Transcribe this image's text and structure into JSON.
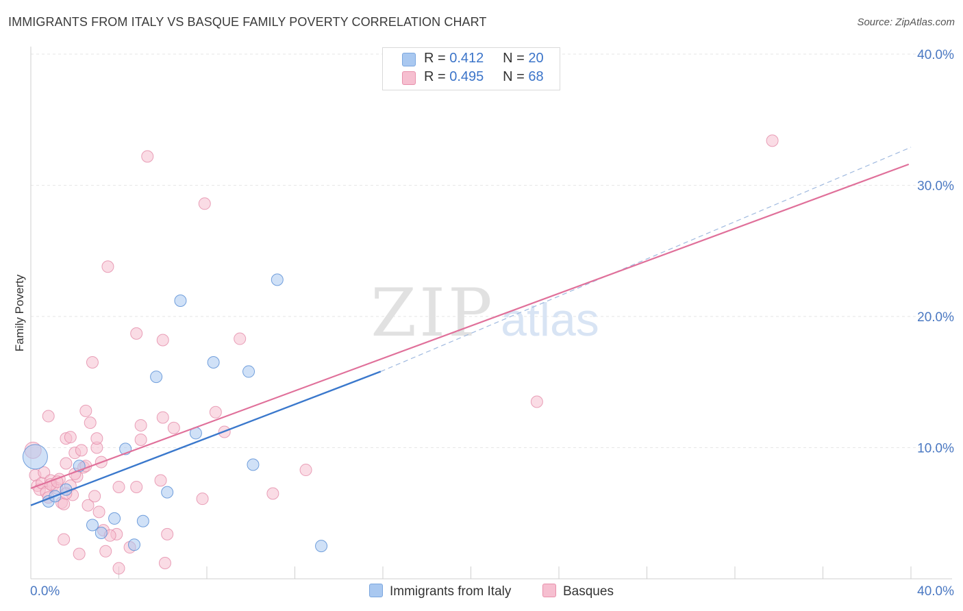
{
  "header": {
    "title": "IMMIGRANTS FROM ITALY VS BASQUE FAMILY POVERTY CORRELATION CHART",
    "source": "Source: ZipAtlas.com"
  },
  "watermark": {
    "zip": "ZIP",
    "atlas": "atlas"
  },
  "legend": {
    "rows": [
      {
        "r_label": "R =",
        "r_value": "0.412",
        "n_label": "N =",
        "n_value": "20",
        "color": "#a9c8f0",
        "border": "#7aa6de"
      },
      {
        "r_label": "R =",
        "r_value": "0.495",
        "n_label": "N =",
        "n_value": "68",
        "color": "#f6bfd0",
        "border": "#e88fab"
      }
    ]
  },
  "bottom_legend": {
    "italy_label": "Immigrants from Italy",
    "basques_label": "Basques"
  },
  "colors": {
    "italy_fill": "#a9c8f0",
    "italy_stroke": "#5b8fd6",
    "italy_line": "#3a78cc",
    "basque_fill": "#f6bfd0",
    "basque_stroke": "#e48aa8",
    "basque_line": "#e0709a",
    "axis_label": "#4a78c2"
  },
  "chart_data": {
    "type": "scatter",
    "title": "IMMIGRANTS FROM ITALY VS BASQUE FAMILY POVERTY CORRELATION CHART",
    "xlabel": "",
    "ylabel": "Family Poverty",
    "xlim": [
      0,
      40
    ],
    "ylim": [
      0,
      40
    ],
    "x_tick_labels": [
      "0.0%",
      "40.0%"
    ],
    "y_ticks": [
      10,
      20,
      30,
      40
    ],
    "y_tick_labels": [
      "10.0%",
      "20.0%",
      "30.0%",
      "40.0%"
    ],
    "grid": true,
    "legend_position": "top-center",
    "series": [
      {
        "name": "Immigrants from Italy",
        "points": [
          [
            0.2,
            9.3
          ],
          [
            0.8,
            5.9
          ],
          [
            1.6,
            6.8
          ],
          [
            2.2,
            8.6
          ],
          [
            2.8,
            4.1
          ],
          [
            3.2,
            3.5
          ],
          [
            3.8,
            4.6
          ],
          [
            4.3,
            9.9
          ],
          [
            4.7,
            2.6
          ],
          [
            5.1,
            4.4
          ],
          [
            5.7,
            15.4
          ],
          [
            6.2,
            6.6
          ],
          [
            6.8,
            21.2
          ],
          [
            7.5,
            11.1
          ],
          [
            8.3,
            16.5
          ],
          [
            9.9,
            15.8
          ],
          [
            10.1,
            8.7
          ],
          [
            11.2,
            22.8
          ],
          [
            13.2,
            2.5
          ],
          [
            1.1,
            6.3
          ]
        ],
        "trend": {
          "x0": 0,
          "y0": 5.6,
          "x1": 15.9,
          "y1": 15.8,
          "dashed_to_x": 40,
          "dashed_to_y": 32.9
        }
      },
      {
        "name": "Basques",
        "points": [
          [
            0.1,
            9.8
          ],
          [
            0.2,
            7.9
          ],
          [
            0.3,
            7.1
          ],
          [
            0.4,
            6.8
          ],
          [
            0.5,
            7.3
          ],
          [
            0.6,
            8.1
          ],
          [
            0.7,
            6.6
          ],
          [
            0.8,
            6.2
          ],
          [
            0.8,
            12.4
          ],
          [
            0.9,
            7.5
          ],
          [
            1.0,
            7.1
          ],
          [
            1.2,
            6.9
          ],
          [
            1.3,
            7.6
          ],
          [
            1.4,
            5.8
          ],
          [
            1.5,
            5.7
          ],
          [
            1.5,
            3.0
          ],
          [
            1.6,
            8.8
          ],
          [
            1.6,
            10.7
          ],
          [
            1.8,
            7.1
          ],
          [
            1.8,
            10.8
          ],
          [
            1.9,
            6.4
          ],
          [
            2.0,
            9.6
          ],
          [
            2.1,
            7.8
          ],
          [
            2.2,
            1.9
          ],
          [
            2.3,
            9.8
          ],
          [
            2.4,
            8.5
          ],
          [
            2.5,
            12.8
          ],
          [
            2.5,
            8.6
          ],
          [
            2.6,
            5.6
          ],
          [
            2.7,
            11.9
          ],
          [
            2.8,
            16.5
          ],
          [
            3.0,
            10.0
          ],
          [
            3.0,
            10.7
          ],
          [
            3.1,
            5.1
          ],
          [
            3.2,
            8.9
          ],
          [
            3.3,
            3.7
          ],
          [
            3.4,
            2.1
          ],
          [
            3.5,
            23.8
          ],
          [
            3.9,
            3.4
          ],
          [
            4.0,
            7.0
          ],
          [
            4.0,
            0.8
          ],
          [
            4.5,
            2.4
          ],
          [
            4.8,
            7.0
          ],
          [
            4.8,
            18.7
          ],
          [
            5.0,
            11.7
          ],
          [
            5.0,
            10.6
          ],
          [
            5.3,
            32.2
          ],
          [
            5.9,
            7.5
          ],
          [
            6.0,
            12.3
          ],
          [
            6.0,
            18.2
          ],
          [
            6.1,
            1.2
          ],
          [
            6.2,
            3.4
          ],
          [
            6.5,
            11.5
          ],
          [
            7.8,
            6.1
          ],
          [
            7.9,
            28.6
          ],
          [
            8.4,
            12.7
          ],
          [
            8.8,
            11.2
          ],
          [
            9.5,
            18.3
          ],
          [
            11.0,
            6.5
          ],
          [
            12.5,
            8.3
          ],
          [
            23.0,
            13.5
          ],
          [
            33.7,
            33.4
          ],
          [
            0.9,
            7.2
          ],
          [
            1.2,
            7.4
          ],
          [
            1.6,
            6.5
          ],
          [
            2.0,
            8.0
          ],
          [
            2.9,
            6.3
          ],
          [
            3.6,
            3.3
          ]
        ],
        "trend": {
          "x0": 0,
          "y0": 6.9,
          "x1": 39.9,
          "y1": 31.6
        }
      }
    ]
  }
}
